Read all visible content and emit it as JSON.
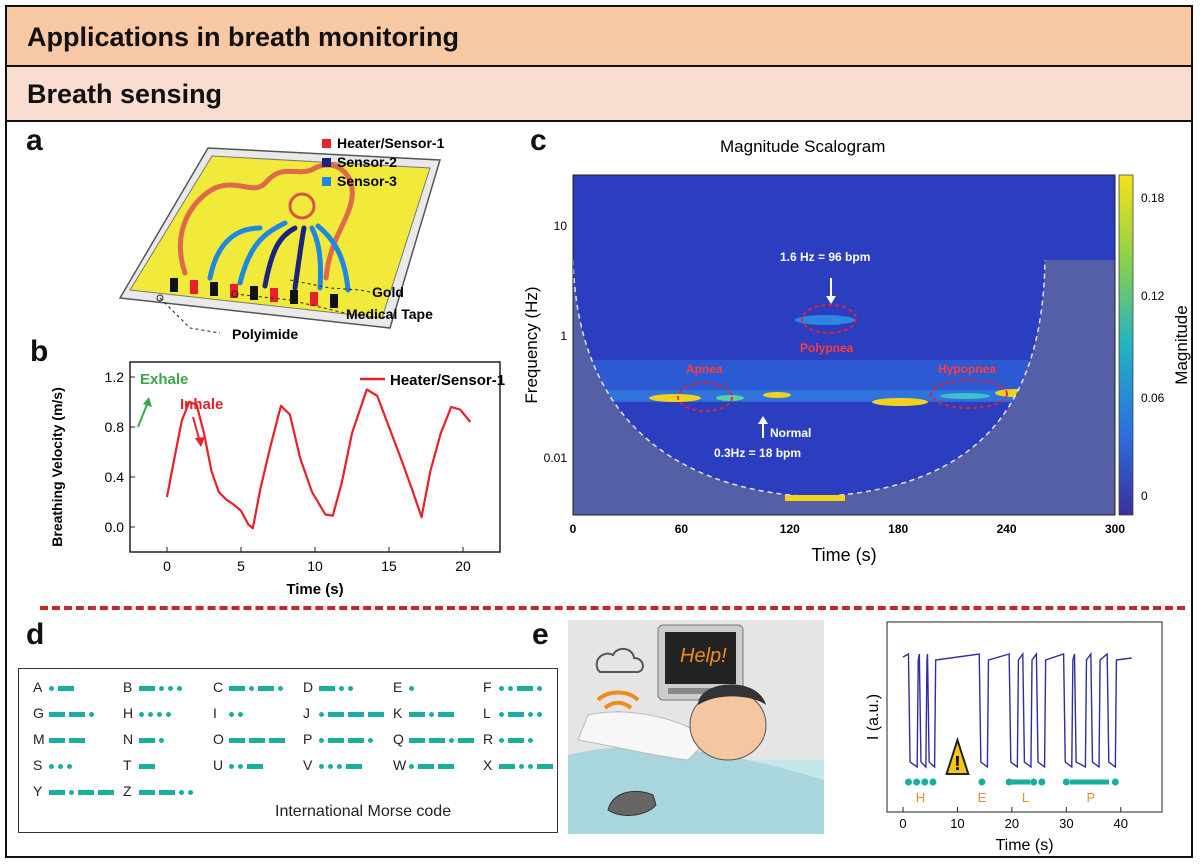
{
  "header": {
    "title": "Applications in breath monitoring",
    "subtitle": "Breath sensing"
  },
  "panels": {
    "a": "a",
    "b": "b",
    "c": "c",
    "d": "d",
    "e": "e"
  },
  "device": {
    "legend": [
      "Heater/Sensor-1",
      "Sensor-2",
      "Sensor-3"
    ],
    "legend_colors": [
      "#e8202a",
      "#1a237e",
      "#1e88e5"
    ],
    "callouts": [
      "Gold",
      "Medical Tape",
      "Polyimide"
    ]
  },
  "chart_data": [
    {
      "type": "line",
      "panel": "b",
      "xlabel": "Time (s)",
      "ylabel": "Breathing Velocity (m/s)",
      "xlim": [
        -2.5,
        22.5
      ],
      "ylim": [
        -0.2,
        1.32
      ],
      "xticks": [
        0,
        5,
        10,
        15,
        20
      ],
      "yticks": [
        0.0,
        0.4,
        0.8,
        1.2
      ],
      "yticklabels": [
        "0.0",
        "0.4",
        "0.8",
        "1.2"
      ],
      "legend": "top-right",
      "series": [
        {
          "name": "Heater/Sensor-1",
          "color": "#e8202a",
          "x": [
            0,
            0.5,
            1.0,
            1.5,
            2.0,
            2.5,
            3.0,
            3.5,
            4.0,
            4.5,
            5.0,
            5.5,
            5.8,
            6.3,
            7.0,
            7.7,
            8.3,
            9.0,
            9.8,
            10.7,
            11.2,
            11.8,
            12.5,
            13.5,
            14.2,
            15.0,
            15.8,
            16.5,
            17.2,
            17.8,
            18.5,
            19.2,
            19.8,
            20.5
          ],
          "y": [
            0.24,
            0.55,
            0.85,
            1.0,
            0.98,
            0.75,
            0.45,
            0.28,
            0.22,
            0.18,
            0.13,
            0.02,
            -0.01,
            0.3,
            0.65,
            0.97,
            0.9,
            0.55,
            0.28,
            0.1,
            0.09,
            0.35,
            0.75,
            1.1,
            1.05,
            0.8,
            0.55,
            0.32,
            0.08,
            0.45,
            0.75,
            0.96,
            0.94,
            0.84
          ]
        }
      ],
      "annotations": [
        "Exhale",
        "Inhale"
      ]
    },
    {
      "type": "heatmap",
      "panel": "c",
      "title": "Magnitude Scalogram",
      "xlabel": "Time (s)",
      "ylabel": "Frequency (Hz)",
      "colorbar_label": "Magnitude",
      "xticks": [
        0,
        60,
        120,
        180,
        240,
        300
      ],
      "yticklabels": [
        "10",
        "1",
        "0.01"
      ],
      "colorbar_ticks": [
        "0.18",
        "0.12",
        "0.06",
        "0"
      ],
      "annotations": [
        "1.6 Hz = 96 bpm",
        "Polypnea",
        "Apnea",
        "Hypopnea",
        "Normal",
        "0.3Hz = 18 bpm"
      ]
    },
    {
      "type": "line",
      "panel": "e",
      "xlabel": "Time (s)",
      "ylabel": "I (a.u.)",
      "xticks": [
        0,
        10,
        20,
        30,
        40
      ],
      "letters": [
        "H",
        "E",
        "L",
        "P"
      ]
    }
  ],
  "morse": {
    "caption": "International Morse code",
    "letters": [
      {
        "ch": "A",
        "code": ".-"
      },
      {
        "ch": "B",
        "code": "-..."
      },
      {
        "ch": "C",
        "code": "-.-."
      },
      {
        "ch": "D",
        "code": "-.."
      },
      {
        "ch": "E",
        "code": "."
      },
      {
        "ch": "F",
        "code": "..-."
      },
      {
        "ch": "G",
        "code": "--."
      },
      {
        "ch": "H",
        "code": "...."
      },
      {
        "ch": "I",
        "code": ".."
      },
      {
        "ch": "J",
        "code": ".---"
      },
      {
        "ch": "K",
        "code": "-.-"
      },
      {
        "ch": "L",
        "code": ".-.."
      },
      {
        "ch": "M",
        "code": "--"
      },
      {
        "ch": "N",
        "code": "-."
      },
      {
        "ch": "O",
        "code": "---"
      },
      {
        "ch": "P",
        "code": ".--."
      },
      {
        "ch": "Q",
        "code": "--.-"
      },
      {
        "ch": "R",
        "code": ".-."
      },
      {
        "ch": "S",
        "code": "..."
      },
      {
        "ch": "T",
        "code": "-"
      },
      {
        "ch": "U",
        "code": "..-"
      },
      {
        "ch": "V",
        "code": "...-"
      },
      {
        "ch": "W",
        "code": ".--"
      },
      {
        "ch": "X",
        "code": "-..-"
      },
      {
        "ch": "Y",
        "code": "-.--"
      },
      {
        "ch": "Z",
        "code": "--.."
      }
    ]
  },
  "scene": {
    "monitor_text": "Help!",
    "icons": [
      "cloud-icon",
      "wifi-icon",
      "warning-icon"
    ]
  }
}
